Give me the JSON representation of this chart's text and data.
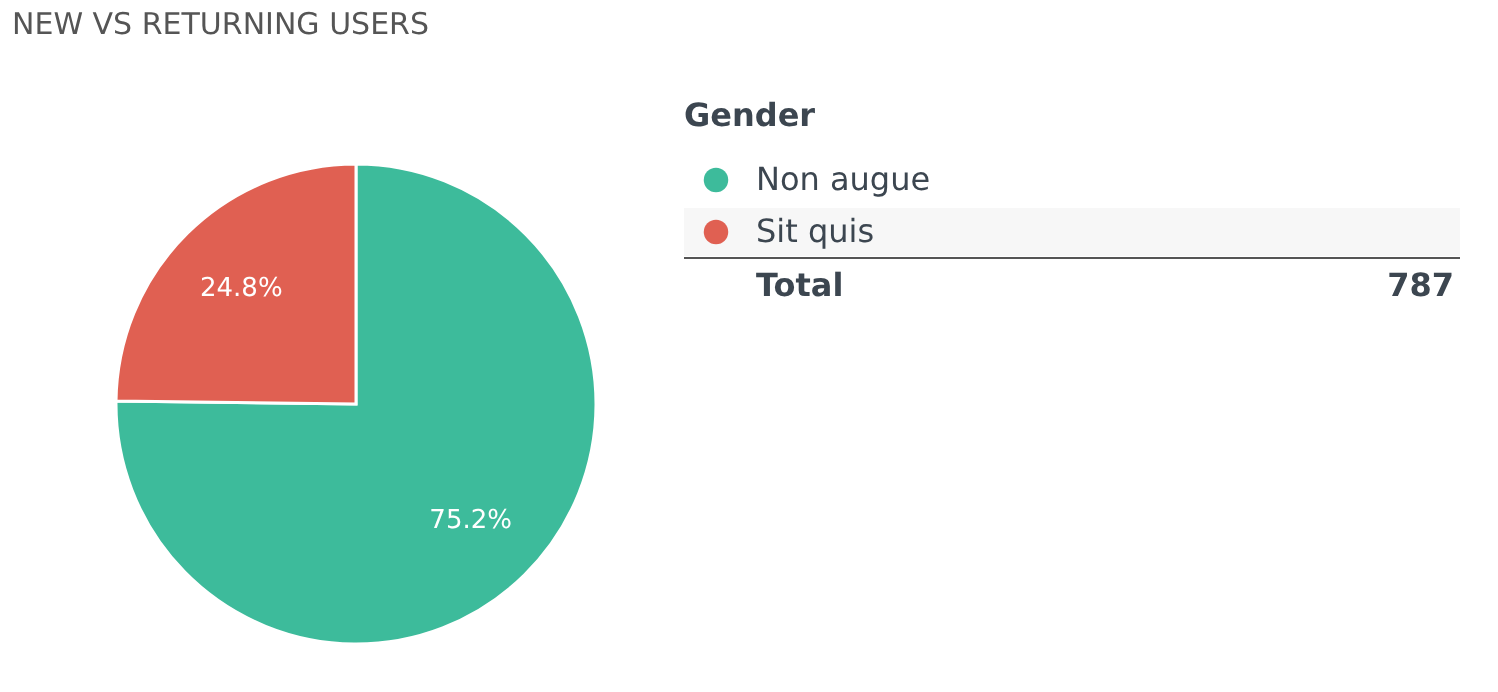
{
  "chart_data": {
    "type": "pie",
    "title": "NEW VS RETURNING USERS",
    "categories": [
      "Non augue",
      "Sit quis"
    ],
    "values": [
      75.2,
      24.8
    ],
    "colors": [
      "#3dbb9b",
      "#e06052"
    ],
    "value_labels": [
      "75.2%",
      "24.8%"
    ],
    "legend_title": "Gender",
    "legend": "right",
    "annotations": [
      "Total",
      "787"
    ]
  }
}
